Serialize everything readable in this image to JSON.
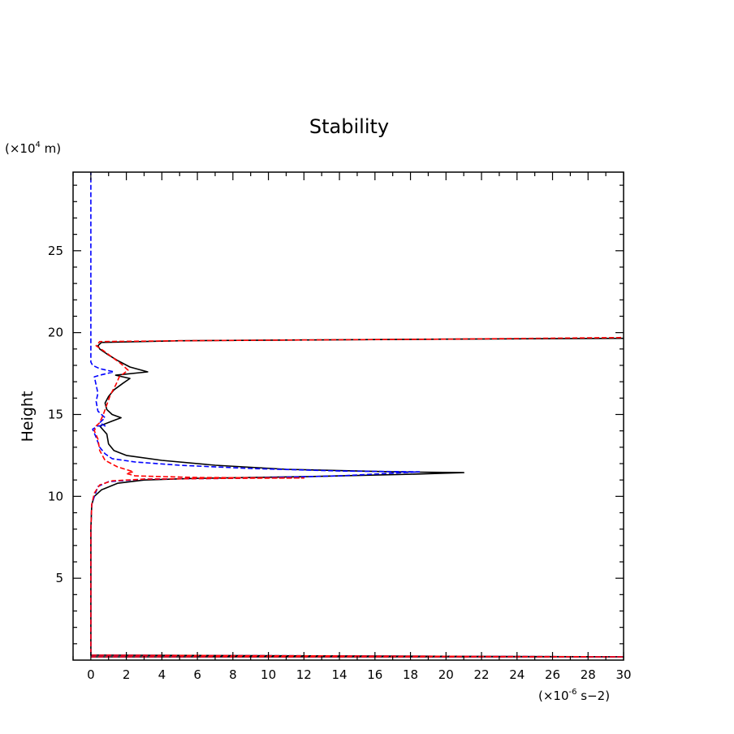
{
  "chart_data": {
    "type": "line",
    "title": "Stability",
    "xlabel": "",
    "ylabel": "Height",
    "x_unit_prefix": "(×10",
    "x_unit_exp": "-6",
    "x_unit_suffix": " s−2)",
    "y_unit_prefix": "(×10",
    "y_unit_exp": "4",
    "y_unit_suffix": " m)",
    "xlim": [
      -1,
      30
    ],
    "ylim": [
      0,
      29.8
    ],
    "x_ticks": [
      0,
      2,
      4,
      6,
      8,
      10,
      12,
      14,
      16,
      18,
      20,
      22,
      24,
      26,
      28,
      30
    ],
    "y_ticks": [
      5,
      10,
      15,
      20,
      25
    ],
    "grid": false,
    "series": [
      {
        "color": "#000000",
        "dash": "solid",
        "points": [
          [
            0,
            0.2
          ],
          [
            30,
            0.2
          ],
          [
            0,
            0.3
          ],
          [
            0,
            8
          ],
          [
            0.05,
            9.5
          ],
          [
            0.2,
            10.0
          ],
          [
            0.6,
            10.4
          ],
          [
            1.5,
            10.8
          ],
          [
            3,
            11.0
          ],
          [
            6,
            11.1
          ],
          [
            12,
            11.2
          ],
          [
            18,
            11.35
          ],
          [
            21,
            11.45
          ],
          [
            17,
            11.5
          ],
          [
            11,
            11.65
          ],
          [
            7,
            11.9
          ],
          [
            4,
            12.2
          ],
          [
            2,
            12.5
          ],
          [
            1.3,
            12.8
          ],
          [
            1.0,
            13.2
          ],
          [
            0.9,
            13.8
          ],
          [
            0.5,
            14.3
          ],
          [
            1.2,
            14.6
          ],
          [
            1.7,
            14.8
          ],
          [
            1.2,
            15.0
          ],
          [
            0.9,
            15.3
          ],
          [
            0.8,
            15.7
          ],
          [
            1.0,
            16.1
          ],
          [
            1.3,
            16.5
          ],
          [
            1.8,
            16.9
          ],
          [
            2.2,
            17.2
          ],
          [
            1.4,
            17.4
          ],
          [
            3.2,
            17.6
          ],
          [
            2.2,
            17.9
          ],
          [
            1.5,
            18.3
          ],
          [
            0.9,
            18.7
          ],
          [
            0.5,
            19.0
          ],
          [
            0.4,
            19.2
          ],
          [
            0.6,
            19.4
          ],
          [
            5,
            19.5
          ],
          [
            12,
            19.55
          ],
          [
            20,
            19.6
          ],
          [
            30,
            19.65
          ]
        ]
      },
      {
        "color": "#0000ff",
        "dash": "dashed",
        "points": [
          [
            0,
            0.2
          ],
          [
            30,
            0.2
          ],
          [
            0,
            0.3
          ],
          [
            0,
            8
          ],
          [
            0.05,
            9.5
          ],
          [
            0.2,
            10.0
          ],
          [
            0.4,
            10.6
          ],
          [
            1.0,
            10.9
          ],
          [
            3,
            11.05
          ],
          [
            8,
            11.1
          ],
          [
            14,
            11.25
          ],
          [
            18.5,
            11.5
          ],
          [
            14,
            11.55
          ],
          [
            9,
            11.7
          ],
          [
            5,
            11.9
          ],
          [
            2.5,
            12.1
          ],
          [
            1.2,
            12.3
          ],
          [
            0.8,
            12.6
          ],
          [
            0.5,
            13.0
          ],
          [
            0.3,
            13.6
          ],
          [
            0.1,
            14.1
          ],
          [
            0.4,
            14.3
          ],
          [
            0.8,
            14.3
          ],
          [
            0.5,
            14.5
          ],
          [
            0.8,
            14.8
          ],
          [
            0.4,
            15.2
          ],
          [
            0.3,
            15.8
          ],
          [
            0.4,
            16.3
          ],
          [
            0.3,
            16.8
          ],
          [
            0.2,
            17.3
          ],
          [
            0.5,
            17.4
          ],
          [
            1.3,
            17.6
          ],
          [
            0.5,
            17.8
          ],
          [
            0.1,
            18.0
          ],
          [
            0,
            18.2
          ],
          [
            0,
            29.8
          ]
        ]
      },
      {
        "color": "#ff0000",
        "dash": "dashed",
        "points": [
          [
            0,
            0.2
          ],
          [
            30,
            0.2
          ],
          [
            0,
            0.3
          ],
          [
            0,
            8
          ],
          [
            0.05,
            9.5
          ],
          [
            0.2,
            10.2
          ],
          [
            0.5,
            10.7
          ],
          [
            1.2,
            10.95
          ],
          [
            3,
            11.05
          ],
          [
            8,
            11.1
          ],
          [
            12,
            11.12
          ],
          [
            6,
            11.15
          ],
          [
            2.5,
            11.25
          ],
          [
            2.0,
            11.4
          ],
          [
            2.4,
            11.5
          ],
          [
            1.5,
            11.8
          ],
          [
            0.8,
            12.2
          ],
          [
            0.5,
            12.8
          ],
          [
            0.4,
            13.5
          ],
          [
            0.2,
            14.0
          ],
          [
            0.3,
            14.3
          ],
          [
            0.5,
            14.5
          ],
          [
            0.7,
            15.0
          ],
          [
            0.9,
            15.6
          ],
          [
            1.1,
            16.2
          ],
          [
            1.4,
            16.8
          ],
          [
            1.6,
            17.3
          ],
          [
            2.1,
            17.7
          ],
          [
            1.7,
            18.1
          ],
          [
            1.2,
            18.5
          ],
          [
            0.7,
            18.9
          ],
          [
            0.3,
            19.2
          ],
          [
            0.5,
            19.45
          ],
          [
            5,
            19.5
          ],
          [
            12,
            19.55
          ],
          [
            20,
            19.6
          ],
          [
            30,
            19.7
          ]
        ]
      }
    ]
  }
}
